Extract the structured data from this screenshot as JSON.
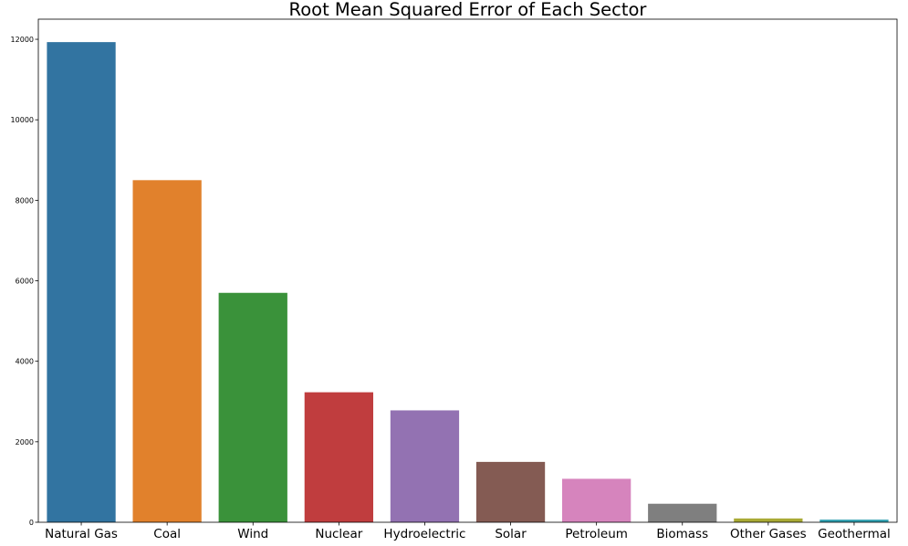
{
  "chart_data": {
    "type": "bar",
    "title": "Root Mean Squared Error of Each Sector",
    "xlabel": "",
    "ylabel": "",
    "categories": [
      "Natural Gas",
      "Coal",
      "Wind",
      "Nuclear",
      "Hydroelectric",
      "Solar",
      "Petroleum",
      "Biomass",
      "Other Gases",
      "Geothermal"
    ],
    "values": [
      11930,
      8500,
      5700,
      3230,
      2780,
      1500,
      1080,
      460,
      95,
      65
    ],
    "colors": [
      "#3274a1",
      "#e1812c",
      "#3a923a",
      "#c03d3e",
      "#9372b2",
      "#845b53",
      "#d684bd",
      "#7f7f7f",
      "#a9aa35",
      "#2ea0b0"
    ],
    "ylim": [
      0,
      12500
    ],
    "yticks": [
      0,
      2000,
      4000,
      6000,
      8000,
      10000,
      12000
    ],
    "ytick_labels": [
      "0",
      "2000",
      "4000",
      "6000",
      "8000",
      "10000",
      "12000"
    ],
    "grid": false,
    "legend": "none"
  }
}
